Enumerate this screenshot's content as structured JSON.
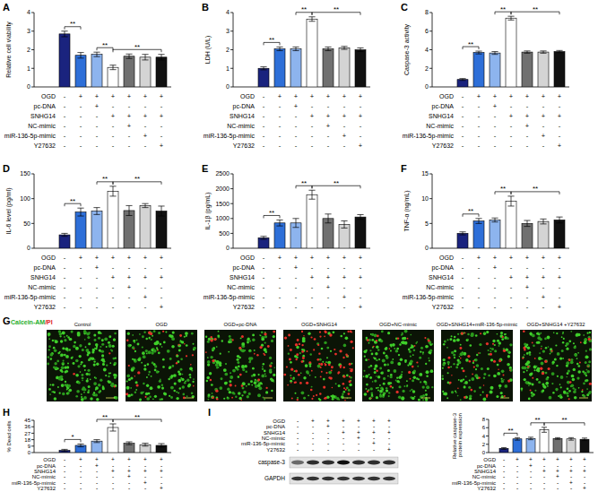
{
  "chart_data": [
    {
      "panel": "A",
      "type": "bar",
      "ylabel": "Relative cell viability",
      "ylim": [
        0,
        4
      ],
      "yticks": [
        0,
        1,
        2,
        3,
        4
      ],
      "values": [
        2.85,
        1.7,
        1.75,
        1.05,
        1.65,
        1.6,
        1.6
      ],
      "errors": [
        0.15,
        0.15,
        0.12,
        0.12,
        0.12,
        0.15,
        0.15
      ],
      "colors": [
        "#1a237e",
        "#2e6fd8",
        "#8db4ee",
        "#ffffff",
        "#707070",
        "#d4d4d4",
        "#111111"
      ],
      "conditions": {
        "rows": [
          "OGD",
          "pc-DNA",
          "SNHG14",
          "NC-mimic",
          "miR-136-5p-mimic",
          "Y27632"
        ],
        "signs": [
          [
            "-",
            "+",
            "+",
            "+",
            "+",
            "+",
            "+"
          ],
          [
            "-",
            "-",
            "+",
            "-",
            "-",
            "-",
            "-"
          ],
          [
            "-",
            "-",
            "-",
            "+",
            "+",
            "+",
            "+"
          ],
          [
            "-",
            "-",
            "-",
            "-",
            "+",
            "-",
            "-"
          ],
          [
            "-",
            "-",
            "-",
            "-",
            "-",
            "+",
            "-"
          ],
          [
            "-",
            "-",
            "-",
            "-",
            "-",
            "-",
            "+"
          ]
        ]
      },
      "annotations": [
        {
          "text": "**",
          "bars": [
            0,
            1
          ]
        },
        {
          "text": "**",
          "bars": [
            2,
            3
          ]
        },
        {
          "text": "**",
          "bars": [
            3,
            6
          ]
        }
      ]
    },
    {
      "panel": "B",
      "type": "bar",
      "ylabel": "LDH (U/L)",
      "ylim": [
        0,
        4
      ],
      "yticks": [
        0,
        1,
        2,
        3,
        4
      ],
      "values": [
        1.0,
        2.05,
        2.05,
        3.65,
        2.05,
        2.1,
        2.0
      ],
      "errors": [
        0.08,
        0.1,
        0.1,
        0.12,
        0.1,
        0.08,
        0.1
      ],
      "colors": [
        "#1a237e",
        "#2e6fd8",
        "#8db4ee",
        "#ffffff",
        "#707070",
        "#d4d4d4",
        "#111111"
      ],
      "conditions": {
        "rows": [
          "OGD",
          "pc-DNA",
          "SNHG14",
          "NC-mimic",
          "miR-136-5p-mimic",
          "Y27632"
        ],
        "signs": [
          [
            "-",
            "+",
            "+",
            "+",
            "+",
            "+",
            "+"
          ],
          [
            "-",
            "-",
            "+",
            "-",
            "-",
            "-",
            "-"
          ],
          [
            "-",
            "-",
            "-",
            "+",
            "+",
            "+",
            "+"
          ],
          [
            "-",
            "-",
            "-",
            "-",
            "+",
            "-",
            "-"
          ],
          [
            "-",
            "-",
            "-",
            "-",
            "-",
            "+",
            "-"
          ],
          [
            "-",
            "-",
            "-",
            "-",
            "-",
            "-",
            "+"
          ]
        ]
      },
      "annotations": [
        {
          "text": "**",
          "bars": [
            0,
            1
          ]
        },
        {
          "text": "**",
          "bars": [
            2,
            3
          ]
        },
        {
          "text": "**",
          "bars": [
            3,
            6
          ]
        }
      ]
    },
    {
      "panel": "C",
      "type": "bar",
      "ylabel": "Caspase-3 activity",
      "ylim": [
        0,
        8
      ],
      "yticks": [
        0,
        2,
        4,
        6,
        8
      ],
      "values": [
        0.8,
        3.7,
        3.65,
        7.4,
        3.75,
        3.75,
        3.8
      ],
      "errors": [
        0.1,
        0.15,
        0.15,
        0.2,
        0.12,
        0.12,
        0.12
      ],
      "colors": [
        "#1a237e",
        "#2e6fd8",
        "#8db4ee",
        "#ffffff",
        "#707070",
        "#d4d4d4",
        "#111111"
      ],
      "conditions": {
        "rows": [
          "OGD",
          "pc-DNA",
          "SNHG14",
          "NC-mimic",
          "miR-136-5p-mimic",
          "Y27632"
        ],
        "signs": [
          [
            "-",
            "+",
            "+",
            "+",
            "+",
            "+",
            "+"
          ],
          [
            "-",
            "-",
            "+",
            "-",
            "-",
            "-",
            "-"
          ],
          [
            "-",
            "-",
            "-",
            "+",
            "+",
            "+",
            "+"
          ],
          [
            "-",
            "-",
            "-",
            "-",
            "+",
            "-",
            "-"
          ],
          [
            "-",
            "-",
            "-",
            "-",
            "-",
            "+",
            "-"
          ],
          [
            "-",
            "-",
            "-",
            "-",
            "-",
            "-",
            "+"
          ]
        ]
      },
      "annotations": [
        {
          "text": "**",
          "bars": [
            0,
            1
          ]
        },
        {
          "text": "**",
          "bars": [
            2,
            3
          ]
        },
        {
          "text": "**",
          "bars": [
            3,
            6
          ]
        }
      ]
    },
    {
      "panel": "D",
      "type": "bar",
      "ylabel": "IL-6 level (pg/ml)",
      "ylim": [
        0,
        150
      ],
      "yticks": [
        0,
        50,
        100,
        150
      ],
      "values": [
        27,
        73,
        75,
        115,
        76,
        86,
        75
      ],
      "errors": [
        3,
        8,
        7,
        10,
        10,
        4,
        10
      ],
      "colors": [
        "#1a237e",
        "#2e6fd8",
        "#8db4ee",
        "#ffffff",
        "#707070",
        "#d4d4d4",
        "#111111"
      ],
      "conditions": {
        "rows": [
          "OGD",
          "pc-DNA",
          "SNHG14",
          "NC-mimic",
          "miR-136-5p-mimic",
          "Y27632"
        ],
        "signs": [
          [
            "-",
            "+",
            "+",
            "+",
            "+",
            "+",
            "+"
          ],
          [
            "-",
            "-",
            "+",
            "-",
            "-",
            "-",
            "-"
          ],
          [
            "-",
            "-",
            "-",
            "+",
            "+",
            "+",
            "+"
          ],
          [
            "-",
            "-",
            "-",
            "-",
            "+",
            "-",
            "-"
          ],
          [
            "-",
            "-",
            "-",
            "-",
            "-",
            "+",
            "-"
          ],
          [
            "-",
            "-",
            "-",
            "-",
            "-",
            "-",
            "+"
          ]
        ]
      },
      "annotations": [
        {
          "text": "**",
          "bars": [
            0,
            1
          ]
        },
        {
          "text": "**",
          "bars": [
            2,
            3
          ]
        },
        {
          "text": "**",
          "bars": [
            3,
            6
          ]
        }
      ]
    },
    {
      "panel": "E",
      "type": "bar",
      "ylabel": "IL-1β (pg/mL)",
      "ylim": [
        0,
        2500
      ],
      "yticks": [
        0,
        500,
        1000,
        1500,
        2000,
        2500
      ],
      "values": [
        350,
        850,
        850,
        1800,
        1000,
        800,
        1050
      ],
      "errors": [
        50,
        100,
        150,
        150,
        150,
        120,
        80
      ],
      "colors": [
        "#1a237e",
        "#2e6fd8",
        "#8db4ee",
        "#ffffff",
        "#707070",
        "#d4d4d4",
        "#111111"
      ],
      "conditions": {
        "rows": [
          "OGD",
          "pc-DNA",
          "SNHG14",
          "NC-mimic",
          "miR-136-5p-mimic",
          "Y27632"
        ],
        "signs": [
          [
            "-",
            "+",
            "+",
            "+",
            "+",
            "+",
            "+"
          ],
          [
            "-",
            "-",
            "+",
            "-",
            "-",
            "-",
            "-"
          ],
          [
            "-",
            "-",
            "-",
            "+",
            "+",
            "+",
            "+"
          ],
          [
            "-",
            "-",
            "-",
            "-",
            "+",
            "-",
            "-"
          ],
          [
            "-",
            "-",
            "-",
            "-",
            "-",
            "+",
            "-"
          ],
          [
            "-",
            "-",
            "-",
            "-",
            "-",
            "-",
            "+"
          ]
        ]
      },
      "annotations": [
        {
          "text": "**",
          "bars": [
            0,
            1
          ]
        },
        {
          "text": "**",
          "bars": [
            2,
            3
          ]
        },
        {
          "text": "**",
          "bars": [
            3,
            6
          ]
        }
      ]
    },
    {
      "panel": "F",
      "type": "bar",
      "ylabel": "TNF-α (ng/mL)",
      "ylim": [
        0,
        15
      ],
      "yticks": [
        0,
        5,
        10,
        15
      ],
      "values": [
        3,
        5.5,
        5.7,
        9.5,
        5,
        5.4,
        5.7
      ],
      "errors": [
        0.3,
        0.5,
        0.4,
        1.0,
        0.6,
        0.5,
        0.6
      ],
      "colors": [
        "#1a237e",
        "#2e6fd8",
        "#8db4ee",
        "#ffffff",
        "#707070",
        "#d4d4d4",
        "#111111"
      ],
      "conditions": {
        "rows": [
          "OGD",
          "pc-DNA",
          "SNHG14",
          "NC-mimic",
          "miR-136-5p-mimic",
          "Y27632"
        ],
        "signs": [
          [
            "-",
            "+",
            "+",
            "+",
            "+",
            "+",
            "+"
          ],
          [
            "-",
            "-",
            "+",
            "-",
            "-",
            "-",
            "-"
          ],
          [
            "-",
            "-",
            "-",
            "+",
            "+",
            "+",
            "+"
          ],
          [
            "-",
            "-",
            "-",
            "-",
            "+",
            "-",
            "-"
          ],
          [
            "-",
            "-",
            "-",
            "-",
            "-",
            "+",
            "-"
          ],
          [
            "-",
            "-",
            "-",
            "-",
            "-",
            "-",
            "+"
          ]
        ]
      },
      "annotations": [
        {
          "text": "**",
          "bars": [
            0,
            1
          ]
        },
        {
          "text": "**",
          "bars": [
            2,
            3
          ]
        },
        {
          "text": "**",
          "bars": [
            3,
            6
          ]
        }
      ]
    },
    {
      "panel": "H",
      "type": "bar",
      "ylabel": "% Dead cells",
      "ylim": [
        0,
        45
      ],
      "yticks": [
        0,
        9,
        18,
        27,
        36,
        45
      ],
      "values": [
        3,
        10,
        16,
        35,
        13,
        11,
        10
      ],
      "errors": [
        1.5,
        2,
        2,
        5,
        2,
        2,
        2.5
      ],
      "colors": [
        "#1a237e",
        "#2e6fd8",
        "#8db4ee",
        "#ffffff",
        "#707070",
        "#d4d4d4",
        "#111111"
      ],
      "conditions": {
        "rows": [
          "OGD",
          "pc-DNA",
          "SNHG14",
          "NC-mimic",
          "miR-136-5p-mimic",
          "Y27632"
        ],
        "signs": [
          [
            "-",
            "+",
            "+",
            "+",
            "+",
            "+",
            "+"
          ],
          [
            "-",
            "-",
            "+",
            "-",
            "-",
            "-",
            "-"
          ],
          [
            "-",
            "-",
            "-",
            "+",
            "+",
            "+",
            "+"
          ],
          [
            "-",
            "-",
            "-",
            "-",
            "+",
            "-",
            "-"
          ],
          [
            "-",
            "-",
            "-",
            "-",
            "-",
            "+",
            "-"
          ],
          [
            "-",
            "-",
            "-",
            "-",
            "-",
            "-",
            "+"
          ]
        ]
      },
      "annotations": [
        {
          "text": "*",
          "bars": [
            0,
            1
          ]
        },
        {
          "text": "**",
          "bars": [
            2,
            3
          ]
        },
        {
          "text": "**",
          "bars": [
            3,
            6
          ]
        }
      ]
    },
    {
      "panel": "I",
      "type": "bar",
      "ylabel": "Relative caspase-3 protein expression",
      "ylim": [
        0,
        8
      ],
      "yticks": [
        0,
        2,
        4,
        6,
        8
      ],
      "values": [
        1.0,
        3.3,
        3.4,
        5.5,
        3.4,
        3.3,
        3.2
      ],
      "errors": [
        0.2,
        0.3,
        0.3,
        0.6,
        0.2,
        0.3,
        0.3
      ],
      "colors": [
        "#1a237e",
        "#2e6fd8",
        "#8db4ee",
        "#ffffff",
        "#707070",
        "#d4d4d4",
        "#111111"
      ],
      "conditions": {
        "rows": [
          "OGD",
          "pc-DNA",
          "SNHG14",
          "NC-mimic",
          "miR-136-5p-mimic",
          "Y27632"
        ],
        "signs": [
          [
            "-",
            "+",
            "+",
            "+",
            "+",
            "+",
            "+"
          ],
          [
            "-",
            "-",
            "+",
            "-",
            "-",
            "-",
            "-"
          ],
          [
            "-",
            "-",
            "-",
            "+",
            "+",
            "+",
            "+"
          ],
          [
            "-",
            "-",
            "-",
            "-",
            "+",
            "-",
            "-"
          ],
          [
            "-",
            "-",
            "-",
            "-",
            "-",
            "+",
            "-"
          ],
          [
            "-",
            "-",
            "-",
            "-",
            "-",
            "-",
            "+"
          ]
        ]
      },
      "annotations": [
        {
          "text": "**",
          "bars": [
            0,
            1
          ]
        },
        {
          "text": "**",
          "bars": [
            2,
            3
          ]
        },
        {
          "text": "**",
          "bars": [
            3,
            6
          ]
        }
      ]
    }
  ],
  "panel_g": {
    "panel": "G",
    "stain": [
      {
        "text": "Calcein-AM",
        "color": "#1fae2a"
      },
      {
        "text": "/PI",
        "color": "#e02020"
      }
    ],
    "titles": [
      "Control",
      "OGD",
      "OGD+pc-DNA",
      "OGD+SNHG14",
      "OGD+NC-mimic",
      "OGD+SNHG14+miR-136-5p-mimic",
      "OGD+SNHG14 +Y27632"
    ]
  },
  "panel_i_blot": {
    "conditions": {
      "rows": [
        "OGD",
        "pc-DNA",
        "SNHG14",
        "NC-mimic",
        "miR-136-5p-mimic",
        "Y27632"
      ],
      "signs": [
        [
          "-",
          "+",
          "+",
          "+",
          "+",
          "+",
          "+"
        ],
        [
          "-",
          "-",
          "+",
          "-",
          "-",
          "-",
          "-"
        ],
        [
          "-",
          "-",
          "-",
          "+",
          "+",
          "+",
          "+"
        ],
        [
          "-",
          "-",
          "-",
          "-",
          "+",
          "-",
          "-"
        ],
        [
          "-",
          "-",
          "-",
          "-",
          "-",
          "+",
          "-"
        ],
        [
          "-",
          "-",
          "-",
          "-",
          "-",
          "-",
          "+"
        ]
      ]
    },
    "bands": [
      "caspase-3",
      "GAPDH"
    ]
  }
}
